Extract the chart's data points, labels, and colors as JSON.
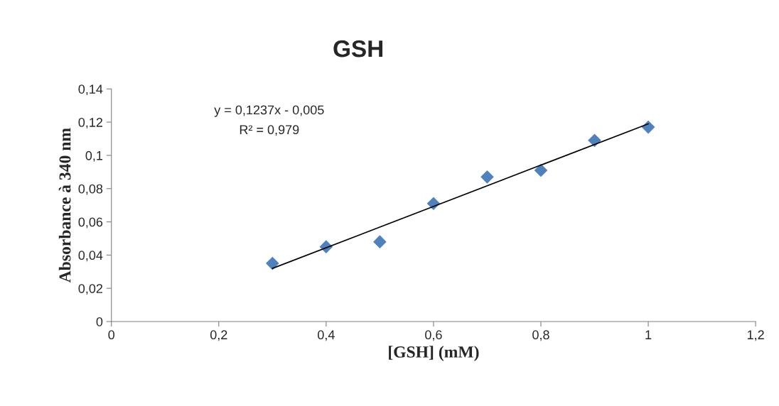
{
  "chart_data": {
    "type": "scatter",
    "title": "GSH",
    "xlabel": "[GSH] (mM)",
    "ylabel": "Absorbance à 340 nm",
    "x": [
      0.3,
      0.4,
      0.5,
      0.6,
      0.7,
      0.8,
      0.9,
      1.0
    ],
    "series": [
      {
        "color": "#4f81bd",
        "marker": "diamond",
        "values": [
          0.035,
          0.045,
          0.048,
          0.071,
          0.087,
          0.091,
          0.109,
          0.117
        ]
      },
      {
        "type": "line",
        "color": "#000000",
        "marker": "none",
        "line_style": "solid",
        "x": [
          0.3,
          1.0
        ],
        "values": [
          0.032,
          0.119
        ]
      }
    ],
    "annotations": [
      "y = 0,1237x - 0,005",
      "R² = 0,979"
    ],
    "xlim": [
      0,
      1.2
    ],
    "xticks": [
      0,
      {
        "value": 0.2,
        "label": "0,2"
      },
      {
        "value": 0.4,
        "label": "0,4"
      },
      {
        "value": 0.6,
        "label": "0,6"
      },
      {
        "value": 0.8,
        "label": "0,8"
      },
      1,
      {
        "value": 1.2,
        "label": "1,2"
      }
    ],
    "ylim": [
      0,
      0.14
    ],
    "yticks": [
      0,
      {
        "value": 0.02,
        "label": "0,02"
      },
      {
        "value": 0.04,
        "label": "0,04"
      },
      {
        "value": 0.06,
        "label": "0,06"
      },
      {
        "value": 0.08,
        "label": "0,08"
      },
      {
        "value": 0.1,
        "label": "0,1"
      },
      {
        "value": 0.12,
        "label": "0,12"
      },
      {
        "value": 0.14,
        "label": "0,14"
      }
    ],
    "grid": false,
    "legend": false
  }
}
